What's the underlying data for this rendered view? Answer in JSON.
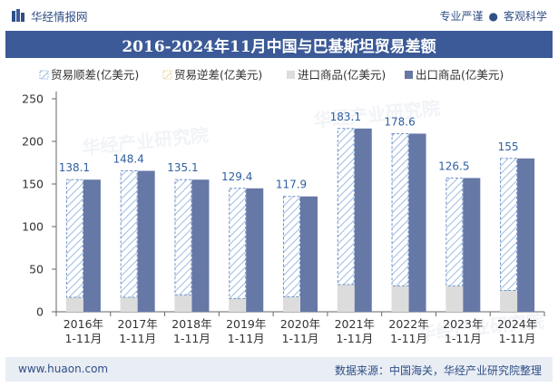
{
  "header": {
    "brand": "华经情报网",
    "tagline_left": "专业严谨",
    "tagline_dot": "●",
    "tagline_right": "客观科学"
  },
  "watermark": "华经产业研究院",
  "footer": {
    "url": "www.huaon.com",
    "source": "数据来源：中国海关，华经产业研究院整理"
  },
  "colors": {
    "surplus": "#9dbbe3",
    "deficit": "#e8d9a4",
    "imports": "#dcdcdc",
    "exports": "#6678a6",
    "title_band": "#3b5a97",
    "brand_blue": "#2f4f86"
  },
  "chart_data": {
    "type": "bar",
    "title": "2016-2024年11月中国与巴基斯坦贸易差额",
    "categories": [
      "2016年\n1-11月",
      "2017年\n1-11月",
      "2018年\n1-11月",
      "2019年\n1-11月",
      "2020年\n1-11月",
      "2021年\n1-11月",
      "2022年\n1-11月",
      "2023年\n1-11月",
      "2024年\n1-11月"
    ],
    "series": [
      {
        "name": "贸易顺差(亿美元)",
        "values": [
          138.1,
          148.4,
          135.1,
          129.4,
          117.9,
          183.1,
          178.6,
          126.5,
          155
        ],
        "style": "hatched"
      },
      {
        "name": "贸易逆差(亿美元)",
        "values": [
          0,
          0,
          0,
          0,
          0,
          0,
          0,
          0,
          0
        ],
        "style": "hatched"
      },
      {
        "name": "进口商品(亿美元)",
        "values": [
          17,
          17,
          20,
          15.5,
          17.5,
          32,
          30.5,
          30.5,
          25
        ]
      },
      {
        "name": "出口商品(亿美元)",
        "values": [
          155.1,
          165.4,
          155.1,
          144.9,
          135.4,
          215.1,
          209.1,
          157,
          180
        ]
      }
    ],
    "ylim": [
      0,
      250
    ],
    "yticks": [
      0,
      50,
      100,
      150,
      200,
      250
    ],
    "legend_position": "top",
    "grid": false
  }
}
